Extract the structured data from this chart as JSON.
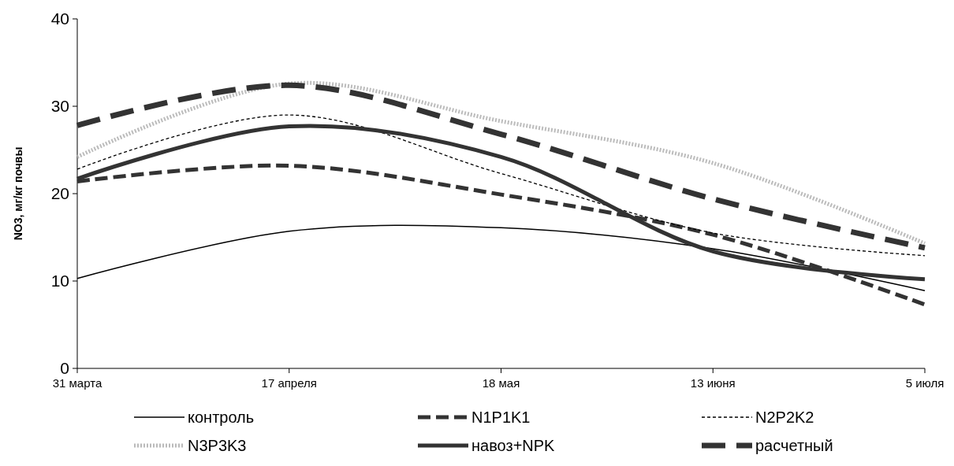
{
  "chart_data": {
    "type": "line",
    "ylabel": "NO3, мг/кг почвы",
    "categories": [
      "31 марта",
      "17 апреля",
      "18 мая",
      "13 июня",
      "5 июля"
    ],
    "ylim": [
      0,
      40
    ],
    "yticks": [
      0,
      10,
      20,
      30,
      40
    ],
    "grid": false,
    "legend": "bottom",
    "marker": "none",
    "series": [
      {
        "name": "контроль",
        "color": "#000000",
        "line_style": "solid",
        "values": [
          10.3,
          15.7,
          16.1,
          13.7,
          8.9
        ]
      },
      {
        "name": "N1P1K1",
        "color": "#333333",
        "line_style": "dashed",
        "values": [
          21.4,
          23.2,
          19.9,
          15.3,
          7.3
        ]
      },
      {
        "name": "N2P2K2",
        "color": "#000000",
        "line_style": "dashed",
        "values": [
          22.8,
          29.0,
          22.3,
          15.5,
          12.9
        ]
      },
      {
        "name": "N3P3K3",
        "color": "#b0b0b0",
        "line_style": "dotted",
        "values": [
          24.2,
          32.6,
          28.3,
          23.5,
          14.3
        ]
      },
      {
        "name": "навоз+NPK",
        "color": "#333333",
        "line_style": "solid",
        "values": [
          21.7,
          27.7,
          24.2,
          13.4,
          10.2
        ]
      },
      {
        "name": "расчетный",
        "color": "#333333",
        "line_style": "dashed",
        "values": [
          27.8,
          32.4,
          26.8,
          19.4,
          13.8
        ]
      }
    ]
  }
}
